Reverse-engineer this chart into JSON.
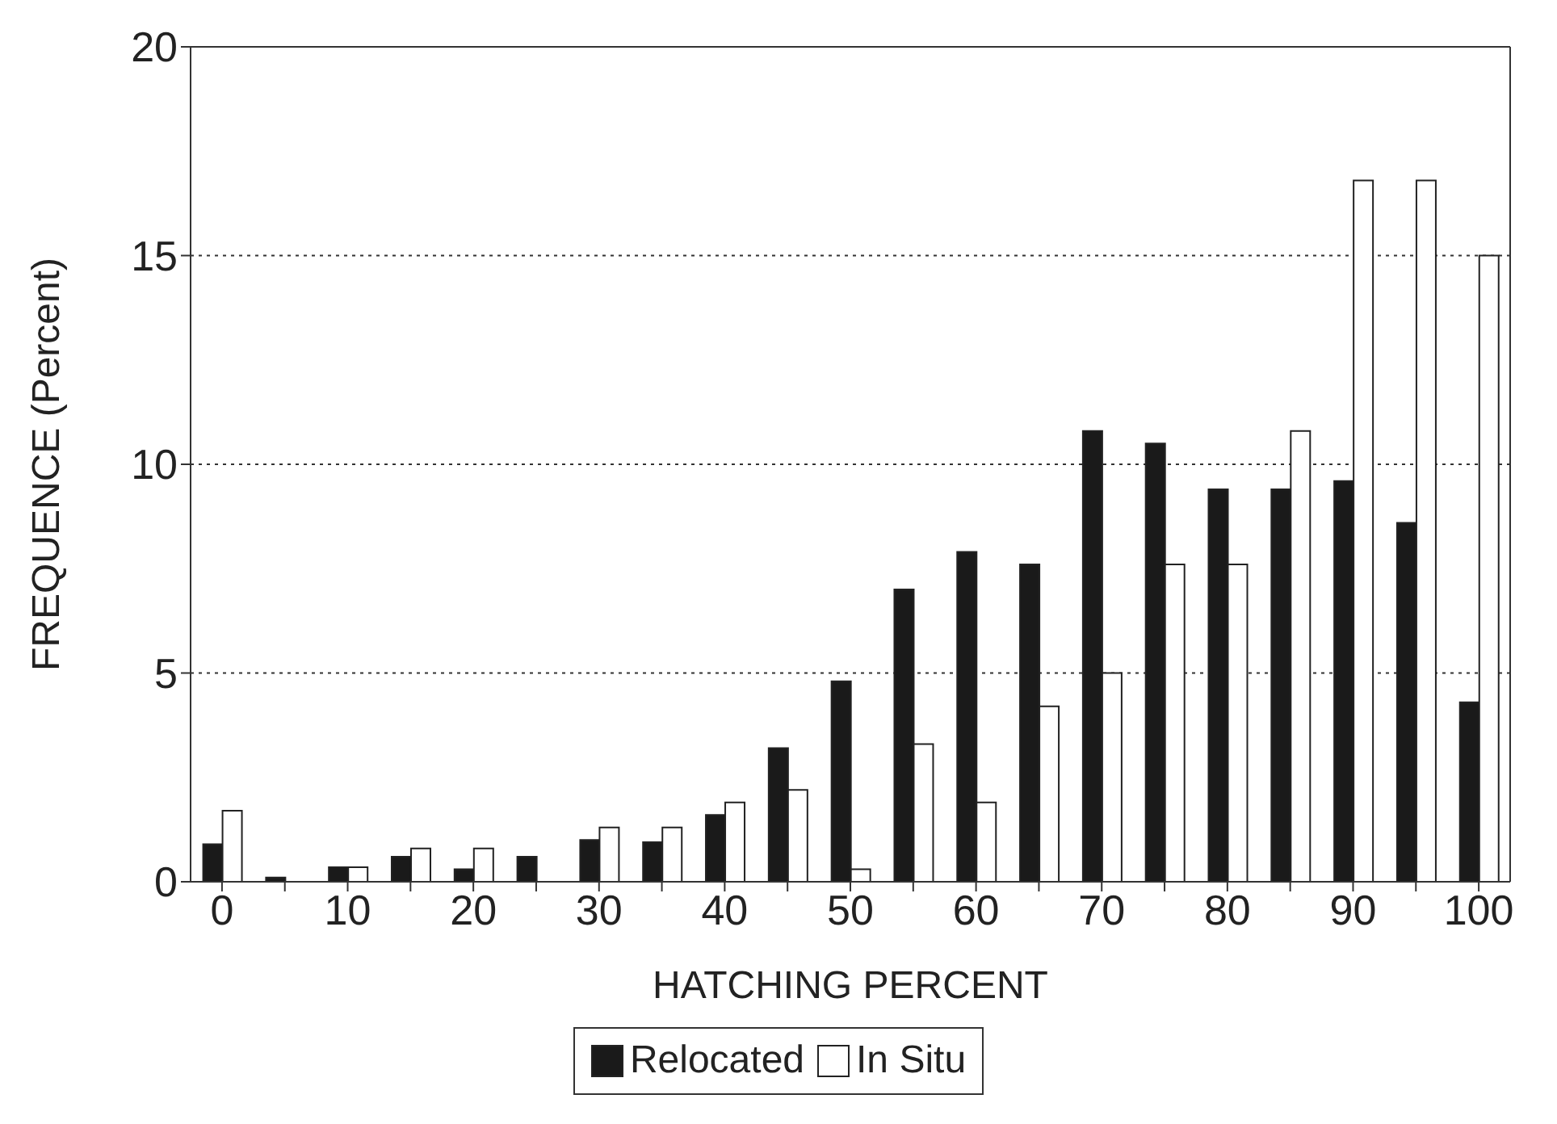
{
  "chart_data": {
    "type": "bar",
    "xlabel": "HATCHING   PERCENT",
    "ylabel": "FREQUENCE  (Percent)",
    "categories": [
      "0",
      null,
      "10",
      null,
      "20",
      null,
      "30",
      null,
      "40",
      null,
      "50",
      null,
      "60",
      null,
      "70",
      null,
      "80",
      null,
      "90",
      null,
      "100"
    ],
    "series": [
      {
        "name": "Relocated",
        "color": "#1a1a1a",
        "values": [
          0.9,
          0.1,
          0.35,
          0.6,
          0.3,
          0.6,
          1.0,
          0.95,
          1.6,
          3.2,
          4.8,
          7.0,
          7.9,
          7.6,
          10.8,
          10.5,
          9.4,
          9.4,
          9.6,
          8.6,
          4.3
        ]
      },
      {
        "name": "In Situ",
        "color": "#ffffff",
        "values": [
          1.7,
          0,
          0.35,
          0.8,
          0.8,
          0,
          1.3,
          1.3,
          1.9,
          2.2,
          0.3,
          3.3,
          1.9,
          4.2,
          5.0,
          7.6,
          7.6,
          10.8,
          16.8,
          16.8,
          15.0
        ]
      }
    ],
    "ylim": [
      0,
      20
    ],
    "yticks": [
      0,
      5,
      10,
      15,
      20
    ],
    "grid": "y",
    "legend": "bottom"
  }
}
